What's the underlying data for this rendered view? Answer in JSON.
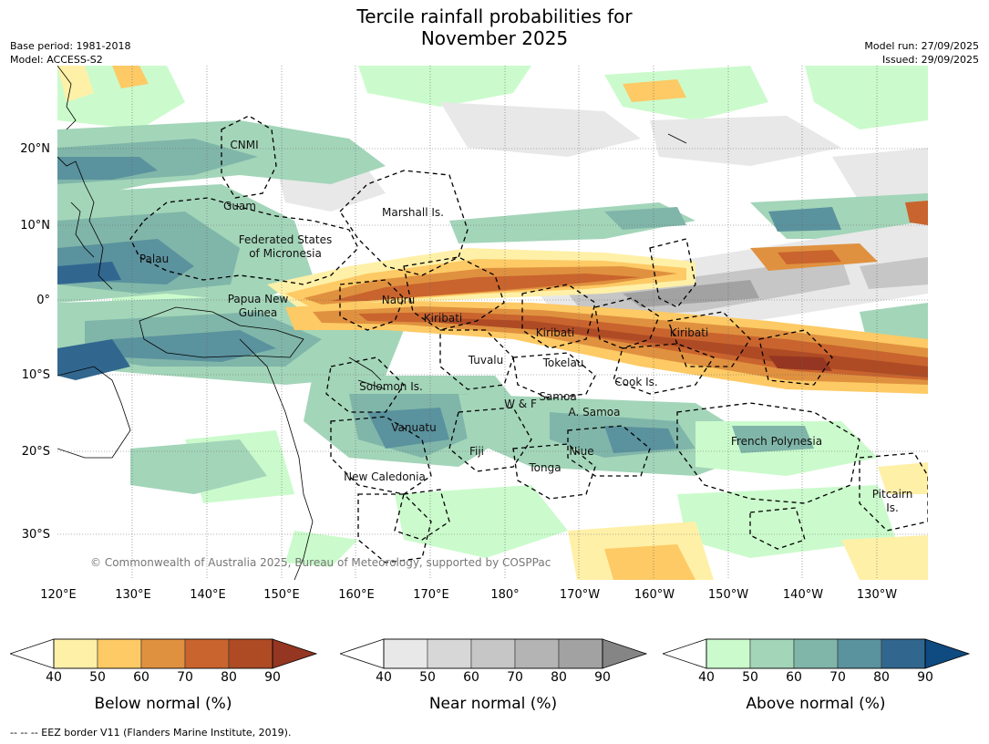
{
  "title": {
    "line1": "Tercile rainfall probabilities for",
    "line2": "November 2025"
  },
  "meta_left": {
    "base_period": "Base period: 1981-2018",
    "model": "Model: ACCESS-S2"
  },
  "meta_right": {
    "model_run": "Model run: 27/09/2025",
    "issued": "Issued: 29/09/2025"
  },
  "map": {
    "lat_labels": [
      "20°N",
      "10°N",
      "0°",
      "10°S",
      "20°S",
      "30°S"
    ],
    "lon_labels": [
      "120°E",
      "130°E",
      "140°E",
      "150°E",
      "160°E",
      "170°E",
      "180°",
      "170°W",
      "160°W",
      "150°W",
      "140°W",
      "130°W"
    ],
    "places": [
      {
        "name": "CNMI"
      },
      {
        "name": "Guam"
      },
      {
        "name": "Marshall Is."
      },
      {
        "name": "Federated States"
      },
      {
        "name": "of Micronesia"
      },
      {
        "name": "Palau"
      },
      {
        "name": "Papua New"
      },
      {
        "name": "Guinea"
      },
      {
        "name": "Nauru"
      },
      {
        "name": "Kiribati"
      },
      {
        "name": "Kiribati"
      },
      {
        "name": "Kiribati"
      },
      {
        "name": "Tuvalu"
      },
      {
        "name": "Tokelau"
      },
      {
        "name": "Cook Is."
      },
      {
        "name": "Solomon Is."
      },
      {
        "name": "W & F"
      },
      {
        "name": "Samoa"
      },
      {
        "name": "A. Samoa"
      },
      {
        "name": "Vanuatu"
      },
      {
        "name": "Fiji"
      },
      {
        "name": "Niue"
      },
      {
        "name": "Tonga"
      },
      {
        "name": "French Polynesia"
      },
      {
        "name": "New Caledonia"
      },
      {
        "name": "Pitcairn"
      },
      {
        "name": "Is."
      }
    ],
    "copyright": "© Commonwealth of Australia 2025, Bureau of Meteorology, supported by COSPPac"
  },
  "colorbars": [
    {
      "title": "Below normal (%)",
      "ticks": [
        "40",
        "50",
        "60",
        "70",
        "80",
        "90"
      ],
      "colors": [
        "#fff0a8",
        "#fdca65",
        "#e0913f",
        "#c9642e",
        "#ae4b25",
        "#943621"
      ]
    },
    {
      "title": "Near normal (%)",
      "ticks": [
        "40",
        "50",
        "60",
        "70",
        "80",
        "90"
      ],
      "colors": [
        "#e8e8e8",
        "#d7d7d7",
        "#c6c6c6",
        "#b4b4b4",
        "#a2a2a2",
        "#858585"
      ]
    },
    {
      "title": "Above normal (%)",
      "ticks": [
        "40",
        "50",
        "60",
        "70",
        "80",
        "90"
      ],
      "colors": [
        "#cbfbcc",
        "#a3d5b9",
        "#80b6a9",
        "#5a929e",
        "#31678f",
        "#0f4a80"
      ]
    }
  ],
  "footnote": "-- -- -- EEZ border V11 (Flanders Marine Institute, 2019)."
}
